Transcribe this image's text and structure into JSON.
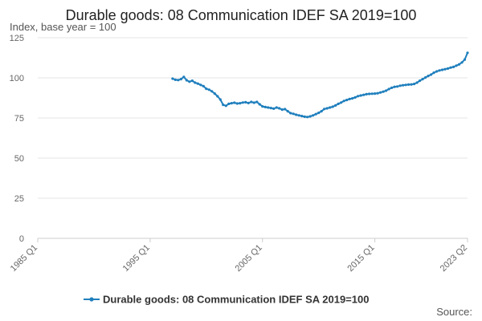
{
  "chart_data": {
    "type": "line",
    "title": "Durable goods: 08 Communication IDEF SA 2019=100",
    "subtitle": "Index, base year = 100",
    "xlabel": "",
    "ylabel": "",
    "x_tick_labels": [
      "1985 Q1",
      "1995 Q1",
      "2005 Q1",
      "2015 Q1",
      "2023 Q2"
    ],
    "y_ticks": [
      0,
      25,
      50,
      75,
      100,
      125
    ],
    "ylim": [
      0,
      125
    ],
    "xlim": [
      "1985 Q1",
      "2023 Q2"
    ],
    "grid": true,
    "legend_position": "bottom",
    "source": "Source:",
    "colors": {
      "series": "#1f7fbd"
    },
    "series": [
      {
        "name": "Durable goods: 08 Communication IDEF SA 2019=100",
        "x": [
          "1997 Q1",
          "1997 Q2",
          "1997 Q3",
          "1997 Q4",
          "1998 Q1",
          "1998 Q2",
          "1998 Q3",
          "1998 Q4",
          "1999 Q1",
          "1999 Q2",
          "1999 Q3",
          "1999 Q4",
          "2000 Q1",
          "2000 Q2",
          "2000 Q3",
          "2000 Q4",
          "2001 Q1",
          "2001 Q2",
          "2001 Q3",
          "2001 Q4",
          "2002 Q1",
          "2002 Q2",
          "2002 Q3",
          "2002 Q4",
          "2003 Q1",
          "2003 Q2",
          "2003 Q3",
          "2003 Q4",
          "2004 Q1",
          "2004 Q2",
          "2004 Q3",
          "2004 Q4",
          "2005 Q1",
          "2005 Q2",
          "2005 Q3",
          "2005 Q4",
          "2006 Q1",
          "2006 Q2",
          "2006 Q3",
          "2006 Q4",
          "2007 Q1",
          "2007 Q2",
          "2007 Q3",
          "2007 Q4",
          "2008 Q1",
          "2008 Q2",
          "2008 Q3",
          "2008 Q4",
          "2009 Q1",
          "2009 Q2",
          "2009 Q3",
          "2009 Q4",
          "2010 Q1",
          "2010 Q2",
          "2010 Q3",
          "2010 Q4",
          "2011 Q1",
          "2011 Q2",
          "2011 Q3",
          "2011 Q4",
          "2012 Q1",
          "2012 Q2",
          "2012 Q3",
          "2012 Q4",
          "2013 Q1",
          "2013 Q2",
          "2013 Q3",
          "2013 Q4",
          "2014 Q1",
          "2014 Q2",
          "2014 Q3",
          "2014 Q4",
          "2015 Q1",
          "2015 Q2",
          "2015 Q3",
          "2015 Q4",
          "2016 Q1",
          "2016 Q2",
          "2016 Q3",
          "2016 Q4",
          "2017 Q1",
          "2017 Q2",
          "2017 Q3",
          "2017 Q4",
          "2018 Q1",
          "2018 Q2",
          "2018 Q3",
          "2018 Q4",
          "2019 Q1",
          "2019 Q2",
          "2019 Q3",
          "2019 Q4",
          "2020 Q1",
          "2020 Q2",
          "2020 Q3",
          "2020 Q4",
          "2021 Q1",
          "2021 Q2",
          "2021 Q3",
          "2021 Q4",
          "2022 Q1",
          "2022 Q2",
          "2022 Q3",
          "2022 Q4",
          "2023 Q1",
          "2023 Q2"
        ],
        "values": [
          99.5,
          98.8,
          98.6,
          99.2,
          100.6,
          98.5,
          97.6,
          98.2,
          97.0,
          96.4,
          95.6,
          94.8,
          93.2,
          92.6,
          91.6,
          90.2,
          88.5,
          86.5,
          83.2,
          82.6,
          83.8,
          84.2,
          84.5,
          84.0,
          84.2,
          84.6,
          84.8,
          84.3,
          85.0,
          84.5,
          85.0,
          83.5,
          82.2,
          81.8,
          81.5,
          81.2,
          80.8,
          81.5,
          81.0,
          80.2,
          80.5,
          79.2,
          78.0,
          77.6,
          77.0,
          76.6,
          76.2,
          75.8,
          75.6,
          76.0,
          76.6,
          77.4,
          78.2,
          79.2,
          80.6,
          81.0,
          81.5,
          82.0,
          82.8,
          83.8,
          84.6,
          85.6,
          86.2,
          86.8,
          87.2,
          87.8,
          88.6,
          89.0,
          89.4,
          89.8,
          90.0,
          90.1,
          90.2,
          90.4,
          90.9,
          91.4,
          92.0,
          93.0,
          93.8,
          94.4,
          94.6,
          95.1,
          95.4,
          95.6,
          95.8,
          95.9,
          96.2,
          97.0,
          98.2,
          99.2,
          100.2,
          101.2,
          102.0,
          103.2,
          104.0,
          104.6,
          105.0,
          105.4,
          105.8,
          106.4,
          106.8,
          107.6,
          108.4,
          109.6,
          111.4,
          115.6
        ]
      }
    ]
  }
}
